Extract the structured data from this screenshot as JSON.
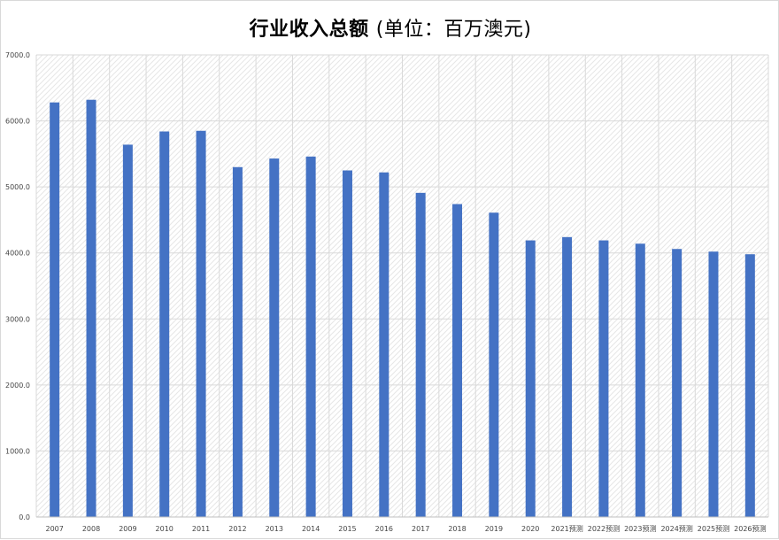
{
  "chart_data": {
    "type": "bar",
    "title": "行业收入总额",
    "title_unit": "(单位：百万澳元)",
    "categories": [
      "2007",
      "2008",
      "2009",
      "2010",
      "2011",
      "2012",
      "2013",
      "2014",
      "2015",
      "2016",
      "2017",
      "2018",
      "2019",
      "2020",
      "2021预测",
      "2022预测",
      "2023预测",
      "2024预测",
      "2025预测",
      "2026预测"
    ],
    "series": [
      {
        "values": [
          6280,
          6320,
          5640,
          5840,
          5850,
          5300,
          5430,
          5460,
          5250,
          5220,
          4910,
          4740,
          4610,
          4190,
          4240,
          4190,
          4140,
          4060,
          4020,
          3980
        ]
      }
    ],
    "yticks": [
      "0.0",
      "1000.0",
      "2000.0",
      "3000.0",
      "4000.0",
      "5000.0",
      "6000.0",
      "7000.0"
    ],
    "ylim": [
      0,
      7000
    ],
    "grid": true,
    "legend": "none",
    "colors": {
      "bar": "#4472C4",
      "grid": "#d9d9d9",
      "hatch": "#e6e6e6"
    }
  }
}
